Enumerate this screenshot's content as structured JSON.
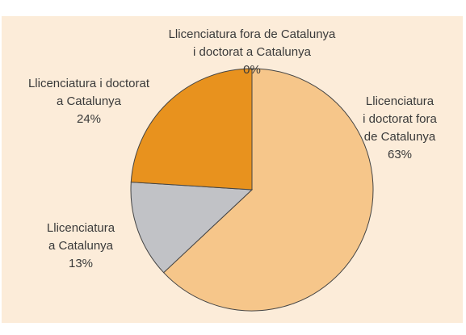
{
  "chart_data": {
    "type": "pie",
    "categories": [
      [
        "Llicenciatura",
        "i doctorat fora",
        "de Catalunya"
      ],
      [
        "Llicenciatura",
        "a Catalunya"
      ],
      [
        "Llicenciatura i doctorat",
        "a Catalunya"
      ],
      [
        "Llicenciatura fora de Catalunya",
        "i doctorat a Catalunya"
      ]
    ],
    "values": [
      63,
      13,
      24,
      0
    ],
    "value_labels": [
      "63%",
      "13%",
      "24%",
      "0%"
    ],
    "colors": [
      "#f6c68a",
      "#c1c2c6",
      "#e8921e",
      "#e8921e"
    ]
  }
}
